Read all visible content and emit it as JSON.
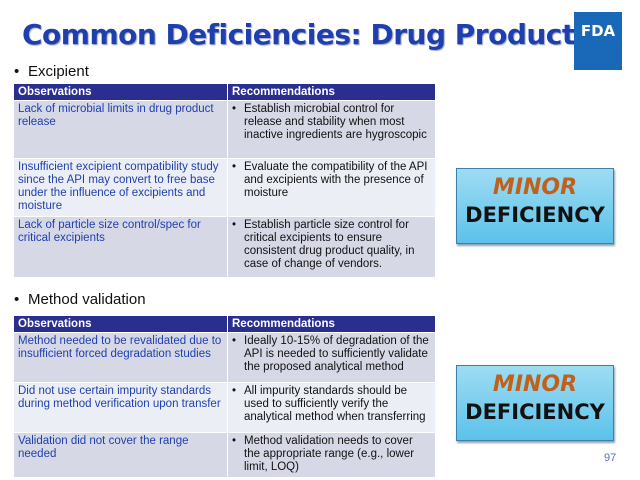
{
  "slide": {
    "title": "Common Deficiencies: Drug Product",
    "logo_text": "FDA",
    "page_number": "97"
  },
  "sections": [
    {
      "heading": "Excipient",
      "columns": [
        "Observations",
        "Recommendations"
      ],
      "rows": [
        {
          "observation": "Lack of microbial limits in drug product release",
          "recommendation": "Establish microbial control for release and stability when most inactive ingredients are hygroscopic"
        },
        {
          "observation": "Insufficient excipient compatibility study since the API may convert to free base under the influence of excipients and moisture",
          "recommendation": "Evaluate the compatibility of the API and excipients with the presence of moisture"
        },
        {
          "observation": "Lack of particle size control/spec for critical excipients",
          "recommendation": "Establish particle size control for critical excipients to ensure consistent drug product quality, in case of change of vendors."
        }
      ],
      "badge": {
        "line1": "MINOR",
        "line2": "DEFICIENCY"
      }
    },
    {
      "heading": "Method validation",
      "columns": [
        "Observations",
        "Recommendations"
      ],
      "rows": [
        {
          "observation": "Method needed to be revalidated due to insufficient forced degradation studies",
          "recommendation": "Ideally 10-15% of degradation of the API is needed to sufficiently validate the proposed analytical method"
        },
        {
          "observation": "Did not use certain impurity standards during method verification upon transfer",
          "recommendation": "All impurity standards should be used to sufficiently verify the analytical method when transferring"
        },
        {
          "observation": "Validation did not cover the range needed",
          "recommendation": "Method validation needs to cover the appropriate range (e.g., lower limit, LOQ)"
        }
      ],
      "badge": {
        "line1": "MINOR",
        "line2": "DEFICIENCY"
      }
    }
  ],
  "icons": {
    "bullet": "•"
  }
}
